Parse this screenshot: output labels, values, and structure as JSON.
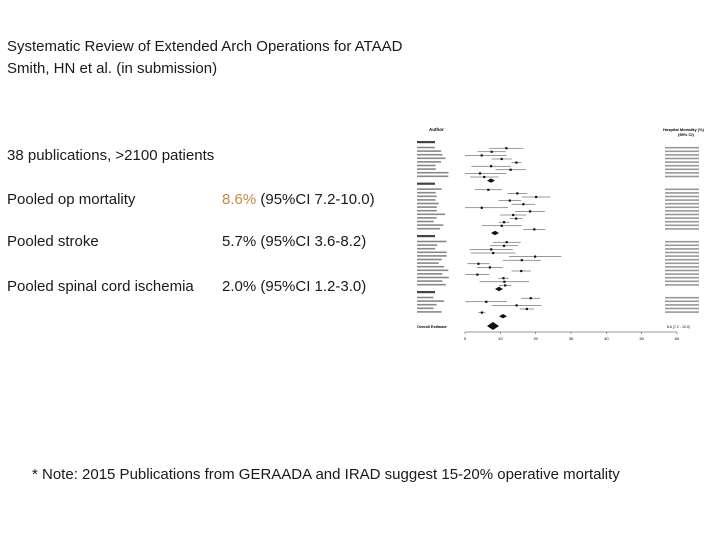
{
  "slide": {
    "title_line1": "Systematic Review of Extended Arch Operations for ATAAD",
    "title_line2": "Smith, HN et al. (in submission)",
    "publications": "38 publications, >2100 patients",
    "rows": [
      {
        "label": "Pooled op mortality",
        "value_accent": "8.6%",
        "value_rest": " (95%CI 7.2-10.0)"
      },
      {
        "label": "Pooled stroke",
        "value_accent": "",
        "value_rest": "5.7% (95%CI 3.6-8.2)"
      },
      {
        "label": "Pooled spinal cord ischemia",
        "value_accent": "",
        "value_rest": "2.0% (95%CI 1.2-3.0)"
      }
    ],
    "note": "* Note: 2015 Publications from GERAADA and IRAD suggest 15-20% operative mortality"
  },
  "forest_plot": {
    "header_author": "Author",
    "header_right": "Hospital Mortality (%)",
    "header_ci": "(95% CI)",
    "overall_label": "Overall Estimate",
    "overall_value": "8.6 (7.2 - 10.0)",
    "x_ticks": [
      "0",
      "10",
      "20",
      "30",
      "40",
      "50",
      "60"
    ]
  },
  "colors": {
    "accent": "#c8893e",
    "text": "#1a1a1a"
  }
}
